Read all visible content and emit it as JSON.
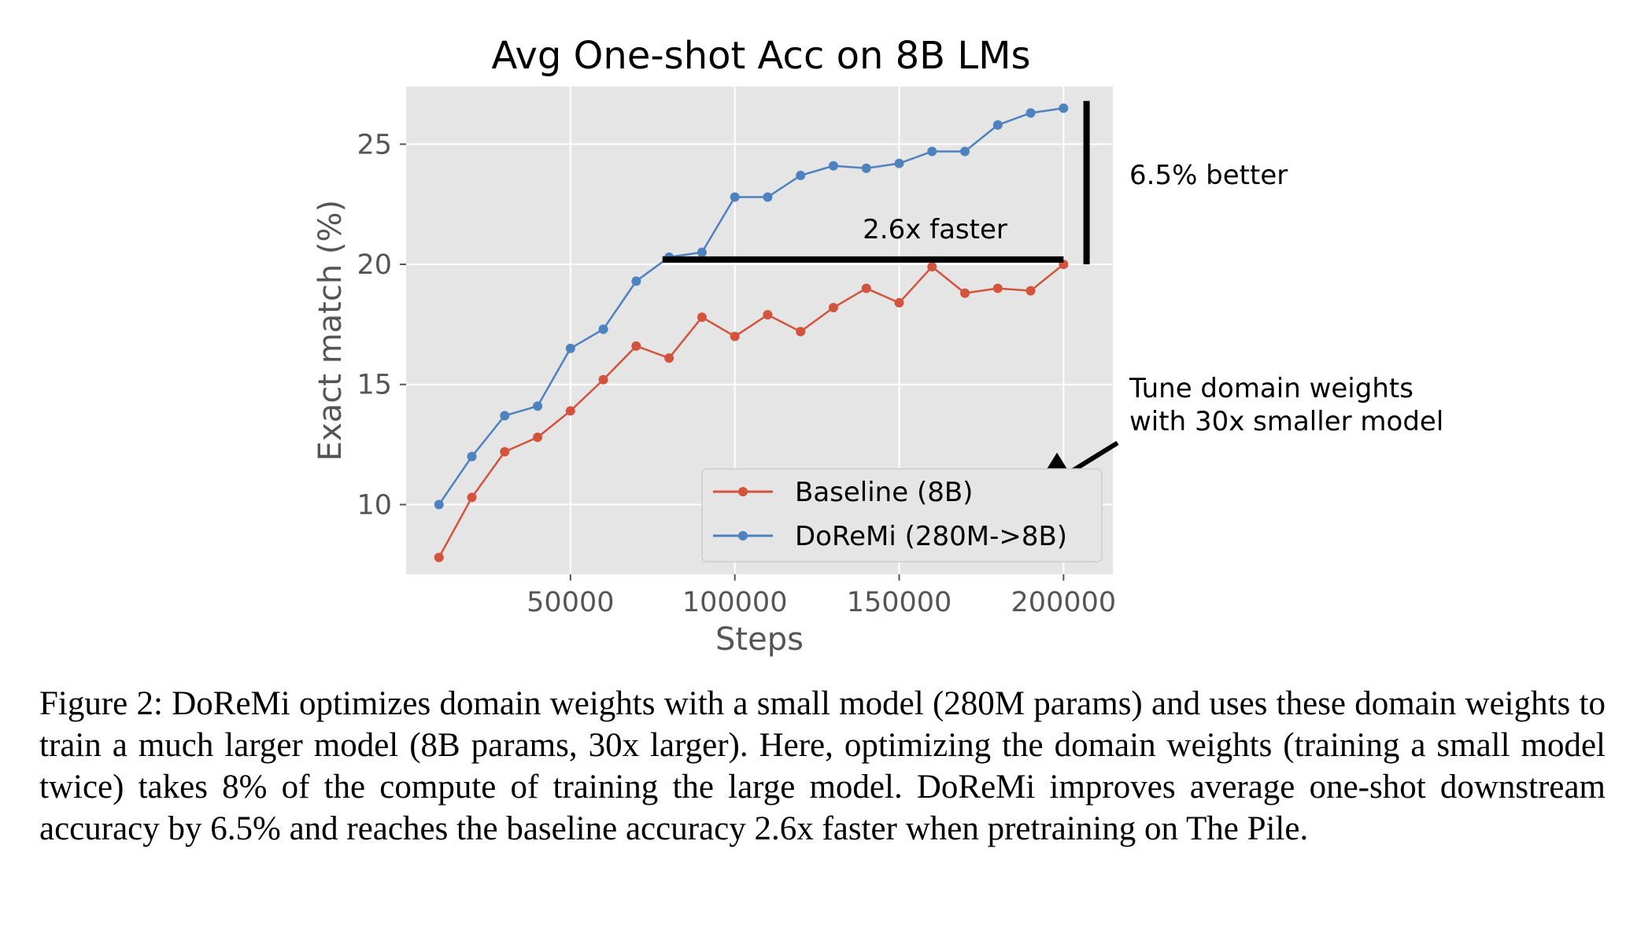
{
  "chart_data": {
    "type": "line",
    "title": "Avg One-shot Acc on 8B LMs",
    "xlabel": "Steps",
    "ylabel": "Exact match (%)",
    "xlim": [
      0,
      215000
    ],
    "ylim": [
      7.1,
      27.4
    ],
    "xticks": [
      50000,
      100000,
      150000,
      200000
    ],
    "xtick_labels": [
      "50000",
      "100000",
      "150000",
      "200000"
    ],
    "yticks": [
      10,
      15,
      20,
      25
    ],
    "ytick_labels": [
      "10",
      "15",
      "20",
      "25"
    ],
    "grid": true,
    "legend_position": "lower right",
    "series": [
      {
        "name": "Baseline (8B)",
        "color": "#d3543c",
        "x": [
          10000,
          20000,
          30000,
          40000,
          50000,
          60000,
          70000,
          80000,
          90000,
          100000,
          110000,
          120000,
          130000,
          140000,
          150000,
          160000,
          170000,
          180000,
          190000,
          200000
        ],
        "values": [
          7.8,
          10.3,
          12.2,
          12.8,
          13.9,
          15.2,
          16.6,
          16.1,
          17.8,
          17.0,
          17.9,
          17.2,
          18.2,
          19.0,
          18.4,
          19.9,
          18.8,
          19.0,
          18.9,
          20.0
        ]
      },
      {
        "name": "DoReMi (280M->8B)",
        "color": "#4d82be",
        "x": [
          10000,
          20000,
          30000,
          40000,
          50000,
          60000,
          70000,
          80000,
          90000,
          100000,
          110000,
          120000,
          130000,
          140000,
          150000,
          160000,
          170000,
          180000,
          190000,
          200000
        ],
        "values": [
          10.0,
          12.0,
          13.7,
          14.1,
          16.5,
          17.3,
          19.3,
          20.3,
          20.5,
          22.8,
          22.8,
          23.7,
          24.1,
          24.0,
          24.2,
          24.7,
          24.7,
          25.8,
          26.3,
          26.5
        ]
      }
    ],
    "annotations": {
      "faster_label": "2.6x faster",
      "better_label": "6.5% better",
      "tune_line1": "Tune domain weights",
      "tune_line2": "with 30x smaller model",
      "hline": {
        "x_start": 78000,
        "x_end": 200000,
        "y": 20.2
      },
      "vline": {
        "x": 207000,
        "y_start": 20.0,
        "y_end": 26.8
      }
    }
  },
  "caption": "Figure 2: DoReMi optimizes domain weights with a small model (280M params) and uses these domain weights to train a much larger model (8B params, 30x larger). Here, optimizing the domain weights (training a small model twice) takes 8% of the compute of training the large model. DoReMi improves average one-shot downstream accuracy by 6.5% and reaches the baseline accuracy 2.6x faster when pretraining on The Pile."
}
